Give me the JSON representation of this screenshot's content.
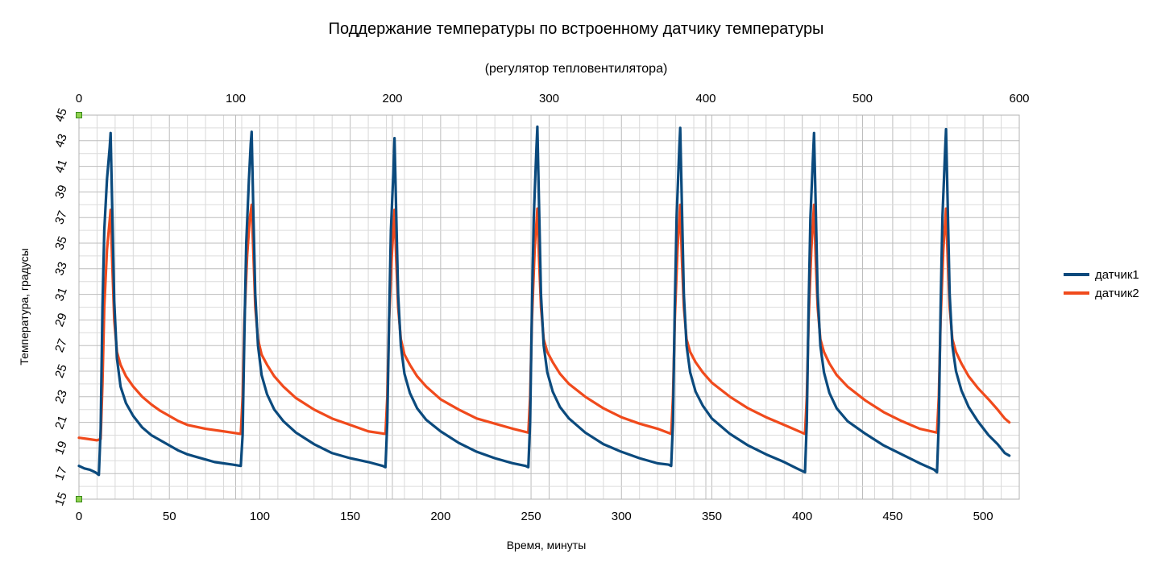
{
  "chart_data": {
    "type": "line",
    "title": "Поддержание температуры по встроенному датчику температуры",
    "subtitle": "(регулятор тепловентилятора)",
    "xlabel": "Время, минуты",
    "ylabel": "Температура, градусы",
    "xlim": [
      0,
      520
    ],
    "ylim": [
      15,
      45
    ],
    "xticks": [
      "0",
      "50",
      "100",
      "150",
      "200",
      "250",
      "300",
      "350",
      "400",
      "450",
      "500"
    ],
    "yticks": [
      "15",
      "17",
      "19",
      "21",
      "23",
      "25",
      "27",
      "29",
      "31",
      "33",
      "35",
      "37",
      "39",
      "41",
      "43",
      "45"
    ],
    "x2lim": [
      0,
      600
    ],
    "x2ticks": [
      "0",
      "100",
      "200",
      "300",
      "400",
      "500",
      "600"
    ],
    "grid": true,
    "legend_position": "right",
    "series": [
      {
        "name": "датчик1",
        "color": "#0b4a7d",
        "points": [
          [
            0,
            17.6
          ],
          [
            3,
            17.4
          ],
          [
            6,
            17.3
          ],
          [
            9,
            17.1
          ],
          [
            11,
            16.9
          ],
          [
            12,
            20.5
          ],
          [
            13,
            30
          ],
          [
            14,
            36
          ],
          [
            15.5,
            40
          ],
          [
            17,
            42.5
          ],
          [
            17.5,
            43.6
          ],
          [
            18.5,
            37
          ],
          [
            19.5,
            30.5
          ],
          [
            21,
            26
          ],
          [
            23,
            23.8
          ],
          [
            26,
            22.5
          ],
          [
            30,
            21.5
          ],
          [
            35,
            20.6
          ],
          [
            40,
            20
          ],
          [
            45,
            19.6
          ],
          [
            50,
            19.2
          ],
          [
            55,
            18.8
          ],
          [
            60,
            18.5
          ],
          [
            65,
            18.3
          ],
          [
            70,
            18.1
          ],
          [
            75,
            17.9
          ],
          [
            80,
            17.8
          ],
          [
            85,
            17.7
          ],
          [
            89.5,
            17.6
          ],
          [
            90.5,
            20
          ],
          [
            91.5,
            28
          ],
          [
            92.5,
            35
          ],
          [
            94,
            40
          ],
          [
            95,
            42.8
          ],
          [
            95.5,
            43.7
          ],
          [
            96.5,
            37
          ],
          [
            97.5,
            31
          ],
          [
            99,
            27
          ],
          [
            101,
            24.7
          ],
          [
            104,
            23.2
          ],
          [
            108,
            22
          ],
          [
            113,
            21.1
          ],
          [
            120,
            20.2
          ],
          [
            130,
            19.3
          ],
          [
            140,
            18.6
          ],
          [
            150,
            18.2
          ],
          [
            160,
            17.9
          ],
          [
            168,
            17.6
          ],
          [
            169.5,
            17.5
          ],
          [
            170.5,
            21
          ],
          [
            171.5,
            29
          ],
          [
            172.5,
            36
          ],
          [
            174,
            41
          ],
          [
            174.5,
            43.2
          ],
          [
            175.5,
            37
          ],
          [
            176.5,
            31
          ],
          [
            178,
            27
          ],
          [
            180,
            24.8
          ],
          [
            183,
            23.3
          ],
          [
            187,
            22.1
          ],
          [
            192,
            21.2
          ],
          [
            200,
            20.3
          ],
          [
            210,
            19.4
          ],
          [
            220,
            18.7
          ],
          [
            230,
            18.2
          ],
          [
            240,
            17.8
          ],
          [
            247,
            17.6
          ],
          [
            248.5,
            17.5
          ],
          [
            249.5,
            21
          ],
          [
            250.5,
            30
          ],
          [
            251.5,
            37
          ],
          [
            253,
            42.5
          ],
          [
            253.5,
            44.1
          ],
          [
            254.5,
            37.5
          ],
          [
            255.5,
            31
          ],
          [
            257,
            27
          ],
          [
            259,
            24.9
          ],
          [
            262,
            23.4
          ],
          [
            266,
            22.2
          ],
          [
            271,
            21.3
          ],
          [
            280,
            20.2
          ],
          [
            290,
            19.3
          ],
          [
            300,
            18.7
          ],
          [
            310,
            18.2
          ],
          [
            320,
            17.8
          ],
          [
            326,
            17.7
          ],
          [
            327.5,
            17.6
          ],
          [
            328.5,
            21
          ],
          [
            329.5,
            30
          ],
          [
            330.5,
            37
          ],
          [
            332,
            42.5
          ],
          [
            332.5,
            44
          ],
          [
            333.5,
            37.5
          ],
          [
            334.5,
            31
          ],
          [
            336,
            27
          ],
          [
            338,
            24.9
          ],
          [
            341,
            23.4
          ],
          [
            345,
            22.3
          ],
          [
            350,
            21.3
          ],
          [
            360,
            20.1
          ],
          [
            370,
            19.2
          ],
          [
            380,
            18.5
          ],
          [
            390,
            17.9
          ],
          [
            397,
            17.4
          ],
          [
            401.5,
            17.1
          ],
          [
            402.5,
            21
          ],
          [
            403.5,
            30
          ],
          [
            404.5,
            37
          ],
          [
            406,
            42
          ],
          [
            406.5,
            43.6
          ],
          [
            407.5,
            37.5
          ],
          [
            408.5,
            31
          ],
          [
            410,
            27
          ],
          [
            412,
            24.9
          ],
          [
            415,
            23.3
          ],
          [
            419,
            22.1
          ],
          [
            425,
            21.1
          ],
          [
            435,
            20.1
          ],
          [
            445,
            19.2
          ],
          [
            455,
            18.5
          ],
          [
            465,
            17.8
          ],
          [
            473,
            17.3
          ],
          [
            474.5,
            17.1
          ],
          [
            475.5,
            21
          ],
          [
            476.5,
            30
          ],
          [
            477.5,
            37
          ],
          [
            479,
            42.3
          ],
          [
            479.5,
            43.9
          ],
          [
            480.5,
            37.5
          ],
          [
            481.5,
            31
          ],
          [
            483,
            27
          ],
          [
            485,
            25
          ],
          [
            488,
            23.5
          ],
          [
            492,
            22.2
          ],
          [
            497,
            21.1
          ],
          [
            503,
            20
          ],
          [
            508,
            19.3
          ],
          [
            512,
            18.6
          ],
          [
            514.5,
            18.4
          ]
        ]
      },
      {
        "name": "датчик2",
        "color": "#f04a1c",
        "points": [
          [
            0,
            19.8
          ],
          [
            5,
            19.7
          ],
          [
            10,
            19.6
          ],
          [
            12,
            19.7
          ],
          [
            13,
            24
          ],
          [
            14,
            30
          ],
          [
            15.5,
            34.5
          ],
          [
            17,
            36.8
          ],
          [
            17.5,
            37.6
          ],
          [
            18.5,
            33
          ],
          [
            19.5,
            29
          ],
          [
            21,
            26.5
          ],
          [
            23,
            25.5
          ],
          [
            26,
            24.6
          ],
          [
            30,
            23.8
          ],
          [
            35,
            23
          ],
          [
            40,
            22.4
          ],
          [
            45,
            21.9
          ],
          [
            50,
            21.5
          ],
          [
            55,
            21.1
          ],
          [
            60,
            20.8
          ],
          [
            70,
            20.5
          ],
          [
            80,
            20.3
          ],
          [
            89.5,
            20.1
          ],
          [
            90.5,
            23
          ],
          [
            91.5,
            29
          ],
          [
            93,
            34
          ],
          [
            94.5,
            37
          ],
          [
            95.5,
            38
          ],
          [
            96.5,
            34
          ],
          [
            97.5,
            30
          ],
          [
            99,
            27.5
          ],
          [
            101,
            26.3
          ],
          [
            104,
            25.5
          ],
          [
            108,
            24.6
          ],
          [
            113,
            23.8
          ],
          [
            120,
            22.9
          ],
          [
            130,
            22
          ],
          [
            140,
            21.3
          ],
          [
            150,
            20.8
          ],
          [
            160,
            20.3
          ],
          [
            169.5,
            20.1
          ],
          [
            170.5,
            23
          ],
          [
            171.5,
            29
          ],
          [
            173,
            34
          ],
          [
            174.5,
            37.6
          ],
          [
            175.5,
            33.5
          ],
          [
            176.5,
            30
          ],
          [
            178,
            27.5
          ],
          [
            180,
            26.3
          ],
          [
            183,
            25.5
          ],
          [
            187,
            24.6
          ],
          [
            192,
            23.8
          ],
          [
            200,
            22.8
          ],
          [
            210,
            22
          ],
          [
            220,
            21.3
          ],
          [
            230,
            20.9
          ],
          [
            240,
            20.5
          ],
          [
            248.5,
            20.2
          ],
          [
            249.5,
            23
          ],
          [
            250.5,
            29
          ],
          [
            252,
            34.5
          ],
          [
            253.5,
            37.7
          ],
          [
            254.5,
            33.5
          ],
          [
            255.5,
            30
          ],
          [
            257,
            27.5
          ],
          [
            259,
            26.5
          ],
          [
            262,
            25.7
          ],
          [
            266,
            24.8
          ],
          [
            271,
            24
          ],
          [
            280,
            23
          ],
          [
            290,
            22.1
          ],
          [
            300,
            21.4
          ],
          [
            310,
            20.9
          ],
          [
            320,
            20.5
          ],
          [
            327.5,
            20.1
          ],
          [
            328.5,
            23
          ],
          [
            329.5,
            29
          ],
          [
            331,
            34.5
          ],
          [
            332.5,
            38
          ],
          [
            333.5,
            33.5
          ],
          [
            334.5,
            30
          ],
          [
            336,
            27.5
          ],
          [
            338,
            26.5
          ],
          [
            341,
            25.7
          ],
          [
            345,
            24.9
          ],
          [
            350,
            24.1
          ],
          [
            360,
            23
          ],
          [
            370,
            22.1
          ],
          [
            380,
            21.4
          ],
          [
            390,
            20.8
          ],
          [
            401.5,
            20.1
          ],
          [
            402.5,
            23
          ],
          [
            403.5,
            29
          ],
          [
            405,
            34.5
          ],
          [
            406.5,
            38
          ],
          [
            407.5,
            33.5
          ],
          [
            408.5,
            30
          ],
          [
            410,
            27.5
          ],
          [
            412,
            26.5
          ],
          [
            415,
            25.6
          ],
          [
            419,
            24.7
          ],
          [
            425,
            23.8
          ],
          [
            435,
            22.7
          ],
          [
            445,
            21.8
          ],
          [
            455,
            21.1
          ],
          [
            465,
            20.5
          ],
          [
            474.5,
            20.2
          ],
          [
            475.5,
            23
          ],
          [
            476.5,
            29
          ],
          [
            478,
            34.5
          ],
          [
            479.5,
            37.7
          ],
          [
            480.5,
            33.5
          ],
          [
            481.5,
            30
          ],
          [
            483,
            27.5
          ],
          [
            485,
            26.5
          ],
          [
            488,
            25.6
          ],
          [
            492,
            24.6
          ],
          [
            497,
            23.7
          ],
          [
            503,
            22.8
          ],
          [
            508,
            22
          ],
          [
            512,
            21.3
          ],
          [
            514.5,
            21
          ]
        ]
      }
    ]
  }
}
